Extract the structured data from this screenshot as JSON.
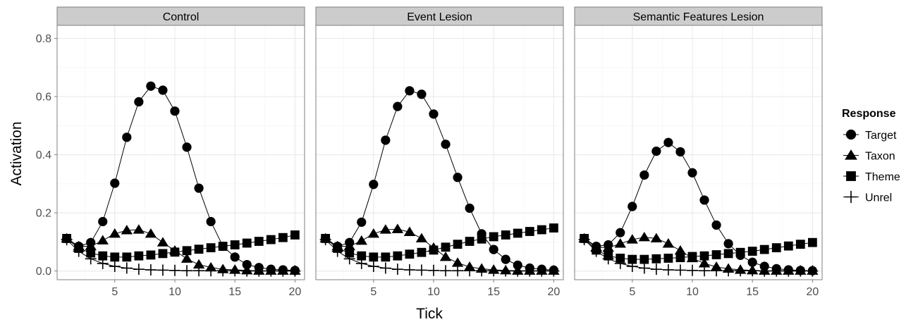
{
  "chart_data": {
    "type": "line",
    "xlabel": "Tick",
    "ylabel": "Activation",
    "xlim": [
      0.2,
      20.8
    ],
    "ylim": [
      -0.03,
      0.845
    ],
    "x_ticks": [
      5,
      10,
      15,
      20
    ],
    "y_ticks": [
      0.0,
      0.2,
      0.4,
      0.6,
      0.8
    ],
    "y_tick_labels": [
      "0.0",
      "0.2",
      "0.4",
      "0.6",
      "0.8"
    ],
    "grid": true,
    "legend": {
      "title": "Response",
      "position": "right",
      "entries": [
        "Target",
        "Taxon",
        "Theme",
        "Unrel"
      ]
    },
    "x": [
      1,
      2,
      3,
      4,
      5,
      6,
      7,
      8,
      9,
      10,
      11,
      12,
      13,
      14,
      15,
      16,
      17,
      18,
      19,
      20
    ],
    "panels": [
      {
        "name": "Control",
        "series": [
          {
            "name": "Target",
            "marker": "circle",
            "values": [
              0.112,
              0.085,
              0.098,
              0.17,
              0.302,
              0.46,
              0.582,
              0.636,
              0.622,
              0.55,
              0.426,
              0.285,
              0.17,
              0.085,
              0.048,
              0.022,
              0.012,
              0.006,
              0.004,
              0.002
            ]
          },
          {
            "name": "Taxon",
            "marker": "triangle",
            "values": [
              0.112,
              0.085,
              0.085,
              0.105,
              0.128,
              0.14,
              0.142,
              0.128,
              0.098,
              0.07,
              0.042,
              0.022,
              0.012,
              0.006,
              0.004,
              0.002,
              0.001,
              0.001,
              0.001,
              0.001
            ]
          },
          {
            "name": "Theme",
            "marker": "square",
            "values": [
              0.112,
              0.078,
              0.062,
              0.052,
              0.048,
              0.048,
              0.052,
              0.055,
              0.06,
              0.065,
              0.07,
              0.075,
              0.08,
              0.085,
              0.09,
              0.096,
              0.102,
              0.108,
              0.115,
              0.124
            ]
          },
          {
            "name": "Unrel",
            "marker": "plus",
            "values": [
              0.108,
              0.068,
              0.042,
              0.026,
              0.016,
              0.01,
              0.006,
              0.004,
              0.003,
              0.002,
              0.001,
              0.001,
              0.001,
              0.001,
              0.001,
              0.0,
              0.0,
              0.0,
              0.0,
              0.0
            ]
          }
        ]
      },
      {
        "name": "Event Lesion",
        "series": [
          {
            "name": "Target",
            "marker": "circle",
            "values": [
              0.112,
              0.085,
              0.098,
              0.168,
              0.298,
              0.45,
              0.566,
              0.62,
              0.608,
              0.54,
              0.436,
              0.322,
              0.216,
              0.128,
              0.074,
              0.04,
              0.02,
              0.01,
              0.006,
              0.003
            ]
          },
          {
            "name": "Taxon",
            "marker": "triangle",
            "values": [
              0.112,
              0.085,
              0.085,
              0.104,
              0.128,
              0.142,
              0.144,
              0.134,
              0.112,
              0.08,
              0.048,
              0.028,
              0.014,
              0.008,
              0.004,
              0.002,
              0.001,
              0.001,
              0.001,
              0.001
            ]
          },
          {
            "name": "Theme",
            "marker": "square",
            "values": [
              0.112,
              0.078,
              0.062,
              0.052,
              0.048,
              0.048,
              0.052,
              0.058,
              0.064,
              0.072,
              0.082,
              0.092,
              0.102,
              0.11,
              0.118,
              0.124,
              0.13,
              0.136,
              0.142,
              0.148
            ]
          },
          {
            "name": "Unrel",
            "marker": "plus",
            "values": [
              0.108,
              0.068,
              0.042,
              0.026,
              0.016,
              0.01,
              0.006,
              0.004,
              0.003,
              0.002,
              0.001,
              0.001,
              0.001,
              0.001,
              0.001,
              0.0,
              0.0,
              0.0,
              0.0,
              0.0
            ]
          }
        ]
      },
      {
        "name": "Semantic Features Lesion",
        "series": [
          {
            "name": "Target",
            "marker": "circle",
            "values": [
              0.112,
              0.085,
              0.09,
              0.132,
              0.222,
              0.33,
              0.412,
              0.442,
              0.41,
              0.338,
              0.244,
              0.158,
              0.094,
              0.054,
              0.03,
              0.016,
              0.008,
              0.004,
              0.002,
              0.001
            ]
          },
          {
            "name": "Taxon",
            "marker": "triangle",
            "values": [
              0.112,
              0.082,
              0.08,
              0.094,
              0.108,
              0.116,
              0.112,
              0.094,
              0.07,
              0.044,
              0.026,
              0.014,
              0.008,
              0.004,
              0.002,
              0.001,
              0.001,
              0.001,
              0.001,
              0.001
            ]
          },
          {
            "name": "Theme",
            "marker": "square",
            "values": [
              0.112,
              0.072,
              0.052,
              0.044,
              0.04,
              0.04,
              0.042,
              0.044,
              0.046,
              0.05,
              0.052,
              0.056,
              0.06,
              0.064,
              0.068,
              0.074,
              0.08,
              0.086,
              0.092,
              0.098
            ]
          },
          {
            "name": "Unrel",
            "marker": "plus",
            "values": [
              0.108,
              0.068,
              0.042,
              0.026,
              0.016,
              0.01,
              0.006,
              0.004,
              0.003,
              0.002,
              0.001,
              0.001,
              0.001,
              0.001,
              0.001,
              0.0,
              0.0,
              0.0,
              0.0,
              0.0
            ]
          }
        ]
      }
    ]
  }
}
